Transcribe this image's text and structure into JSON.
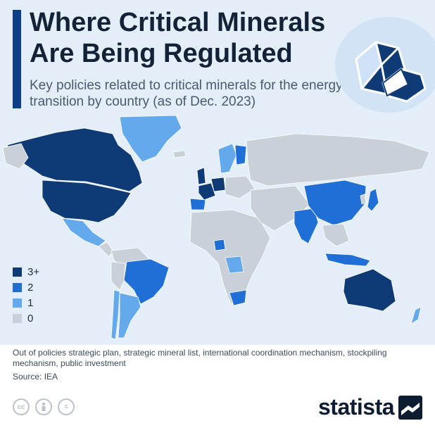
{
  "header": {
    "title": "Where Critical Minerals Are Being Regulated",
    "subtitle": "Key policies related to critical minerals for the energy transition by country (as of Dec. 2023)"
  },
  "colors": {
    "level_3_plus": "#0e3a75",
    "level_2": "#1f6fd6",
    "level_1": "#64a9ec",
    "level_0": "#c9d0d8",
    "background": "#e4eef9"
  },
  "legend": {
    "items": [
      {
        "label": "3+",
        "color": "#0e3a75"
      },
      {
        "label": "2",
        "color": "#1f6fd6"
      },
      {
        "label": "1",
        "color": "#64a9ec"
      },
      {
        "label": "0",
        "color": "#c9d0d8"
      }
    ]
  },
  "map": {
    "regions": [
      {
        "name": "United States",
        "level": "3+"
      },
      {
        "name": "Canada",
        "level": "3+"
      },
      {
        "name": "Australia",
        "level": "3+"
      },
      {
        "name": "United Kingdom",
        "level": "3+"
      },
      {
        "name": "France",
        "level": "3+"
      },
      {
        "name": "Germany",
        "level": "3+"
      },
      {
        "name": "China",
        "level": "2"
      },
      {
        "name": "India",
        "level": "2"
      },
      {
        "name": "Brazil",
        "level": "2"
      },
      {
        "name": "Indonesia",
        "level": "2"
      },
      {
        "name": "South Africa",
        "level": "2"
      },
      {
        "name": "Japan",
        "level": "2"
      },
      {
        "name": "Spain",
        "level": "2"
      },
      {
        "name": "Finland",
        "level": "2"
      },
      {
        "name": "Nigeria",
        "level": "2"
      },
      {
        "name": "Greenland",
        "level": "1"
      },
      {
        "name": "Mexico",
        "level": "1"
      },
      {
        "name": "Chile",
        "level": "1"
      },
      {
        "name": "Argentina",
        "level": "1"
      },
      {
        "name": "Sweden",
        "level": "1"
      },
      {
        "name": "DR Congo",
        "level": "1"
      },
      {
        "name": "New Zealand",
        "level": "1"
      },
      {
        "name": "Russia",
        "level": "0"
      }
    ]
  },
  "footer": {
    "note": "Out of policies strategic plan, strategic mineral list, international coordination mechanism, stockpiling mechanism, public investment",
    "source": "Source: IEA",
    "license_icons": [
      "cc",
      "by",
      "="
    ],
    "brand": "statista"
  }
}
